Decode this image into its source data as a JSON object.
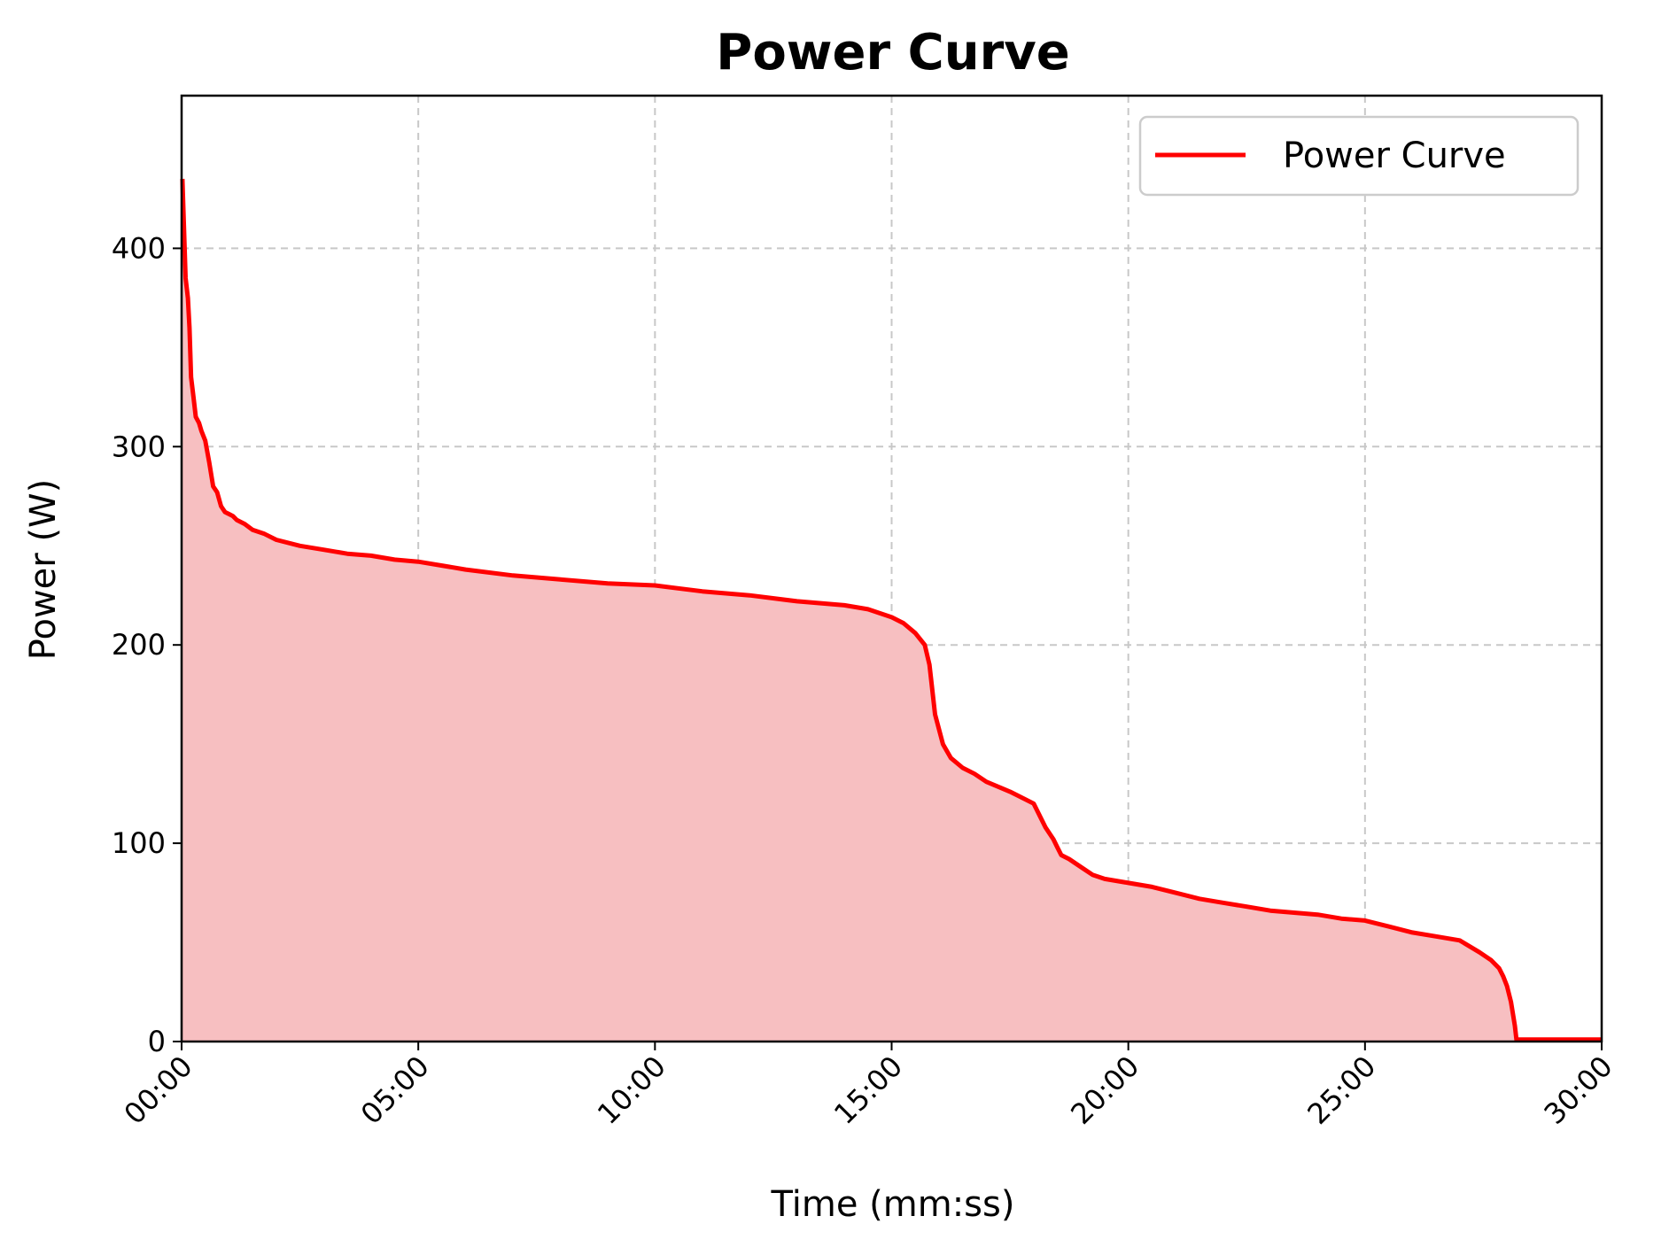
{
  "chart_data": {
    "type": "area",
    "title": "Power Curve",
    "xlabel": "Time (mm:ss)",
    "ylabel": "Power (W)",
    "xlim": [
      0,
      1800
    ],
    "ylim": [
      0,
      477
    ],
    "x_ticks": [
      {
        "value": 0,
        "label": "00:00"
      },
      {
        "value": 300,
        "label": "05:00"
      },
      {
        "value": 600,
        "label": "10:00"
      },
      {
        "value": 900,
        "label": "15:00"
      },
      {
        "value": 1200,
        "label": "20:00"
      },
      {
        "value": 1500,
        "label": "25:00"
      },
      {
        "value": 1800,
        "label": "30:00"
      }
    ],
    "y_ticks": [
      {
        "value": 0,
        "label": "0"
      },
      {
        "value": 100,
        "label": "100"
      },
      {
        "value": 200,
        "label": "200"
      },
      {
        "value": 300,
        "label": "300"
      },
      {
        "value": 400,
        "label": "400"
      }
    ],
    "grid": true,
    "legend_position": "top-right",
    "series": [
      {
        "name": "Power Curve",
        "color": "#ff0000",
        "fill_color": "#f7bfc1",
        "x": [
          1,
          3,
          5,
          8,
          10,
          12,
          15,
          18,
          22,
          25,
          30,
          35,
          40,
          45,
          50,
          55,
          60,
          65,
          70,
          80,
          90,
          105,
          120,
          150,
          180,
          210,
          240,
          270,
          300,
          330,
          360,
          420,
          480,
          540,
          600,
          660,
          720,
          780,
          840,
          870,
          900,
          915,
          930,
          942,
          948,
          955,
          965,
          975,
          990,
          1005,
          1020,
          1050,
          1080,
          1095,
          1105,
          1110,
          1115,
          1125,
          1140,
          1155,
          1170,
          1185,
          1200,
          1230,
          1260,
          1290,
          1320,
          1350,
          1380,
          1410,
          1440,
          1470,
          1500,
          1530,
          1560,
          1590,
          1620,
          1645,
          1660,
          1670,
          1675,
          1680,
          1685,
          1690,
          1692,
          1800
        ],
        "y": [
          435,
          410,
          385,
          375,
          360,
          335,
          325,
          315,
          312,
          308,
          303,
          292,
          280,
          277,
          270,
          267,
          266,
          265,
          263,
          261,
          258,
          256,
          253,
          250,
          248,
          246,
          245,
          243,
          242,
          240,
          238,
          235,
          233,
          231,
          230,
          227,
          225,
          222,
          220,
          218,
          214,
          211,
          206,
          200,
          190,
          165,
          150,
          143,
          138,
          135,
          131,
          126,
          120,
          108,
          102,
          98,
          94,
          92,
          88,
          84,
          82,
          81,
          80,
          78,
          75,
          72,
          70,
          68,
          66,
          65,
          64,
          62,
          61,
          58,
          55,
          53,
          51,
          45,
          41,
          37,
          33,
          28,
          20,
          8,
          1,
          1
        ]
      }
    ]
  }
}
